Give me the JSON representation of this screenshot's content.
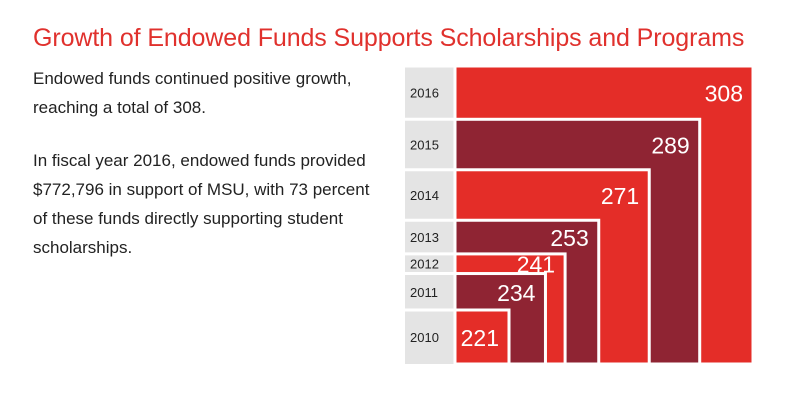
{
  "title": "Growth of Endowed Funds Supports Scholarships and Programs",
  "paragraph1": "Endowed funds continued positive growth, reaching a total of 308.",
  "paragraph2": "In fiscal year 2016, endowed funds provided $772,796 in support of MSU, with 73 percent of these funds directly supporting student scholarships.",
  "colors": {
    "title": "#e0312d",
    "red": "#e42d28",
    "dark": "#8f2433",
    "label_band": "#e4e4e4",
    "text": "#222222"
  },
  "chart_data": {
    "type": "bar",
    "categories": [
      "2016",
      "2015",
      "2014",
      "2013",
      "2012",
      "2011",
      "2010"
    ],
    "values": [
      308,
      289,
      271,
      253,
      241,
      234,
      221
    ],
    "title": "",
    "xlabel": "",
    "ylabel": ""
  }
}
